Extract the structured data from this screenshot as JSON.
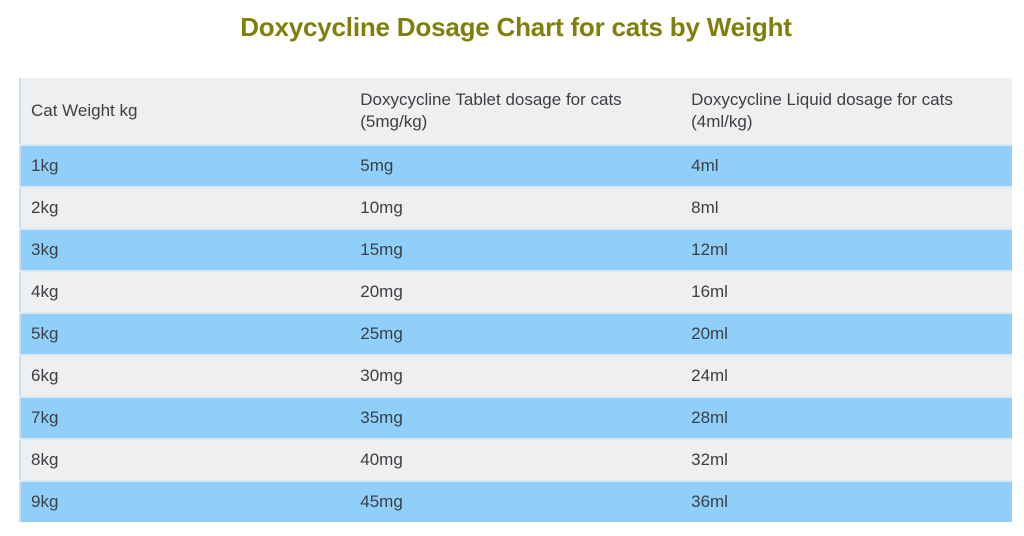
{
  "title": "Doxycycline Dosage Chart for cats by Weight",
  "table": {
    "headers": [
      "Cat Weight kg",
      "Doxycycline Tablet dosage for cats (5mg/kg)",
      "Doxycycline Liquid dosage for cats (4ml/kg)"
    ],
    "rows": [
      [
        "1kg",
        "5mg",
        "4ml"
      ],
      [
        "2kg",
        "10mg",
        "8ml"
      ],
      [
        "3kg",
        "15mg",
        "12ml"
      ],
      [
        "4kg",
        "20mg",
        "16ml"
      ],
      [
        "5kg",
        "25mg",
        "20ml"
      ],
      [
        "6kg",
        "30mg",
        "24ml"
      ],
      [
        "7kg",
        "35mg",
        "28ml"
      ],
      [
        "8kg",
        "40mg",
        "32ml"
      ],
      [
        "9kg",
        "45mg",
        "36ml"
      ]
    ]
  },
  "colors": {
    "title": "#7f7f0a",
    "row_blue": "#8fcffa",
    "row_grey": "#efefef",
    "text": "#3b3f45"
  }
}
